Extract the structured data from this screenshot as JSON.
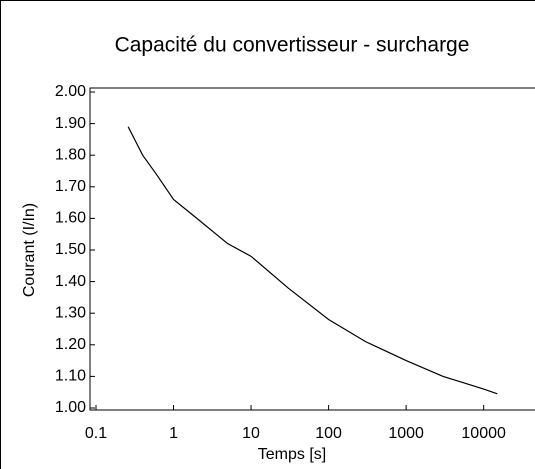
{
  "chart_data": {
    "type": "line",
    "title": "Capacité du convertisseur - surcharge",
    "xlabel": "Temps [s]",
    "ylabel": "Courant (I/In)",
    "xscale": "log",
    "xlim": [
      0.1,
      20000
    ],
    "ylim": [
      1.0,
      2.0
    ],
    "xticks": [
      0.1,
      1,
      10,
      100,
      1000,
      10000
    ],
    "yticks": [
      {
        "value": 1.0,
        "label": "1.00"
      },
      {
        "value": 1.1,
        "label": "1.10"
      },
      {
        "value": 1.2,
        "label": "1.20"
      },
      {
        "value": 1.3,
        "label": "1.30"
      },
      {
        "value": 1.4,
        "label": "1.40"
      },
      {
        "value": 1.5,
        "label": "1.50"
      },
      {
        "value": 1.6,
        "label": "1.60"
      },
      {
        "value": 1.7,
        "label": "1.70"
      },
      {
        "value": 1.8,
        "label": "1.80"
      },
      {
        "value": 1.9,
        "label": "1.90"
      },
      {
        "value": 2.0,
        "label": "2.00"
      }
    ],
    "color": "#000000",
    "x": [
      0.26,
      0.4,
      0.6,
      1,
      2,
      5,
      10,
      30,
      100,
      300,
      1000,
      3000,
      10000,
      15000
    ],
    "values": [
      1.89,
      1.8,
      1.74,
      1.66,
      1.6,
      1.52,
      1.48,
      1.38,
      1.28,
      1.21,
      1.15,
      1.1,
      1.06,
      1.045
    ]
  }
}
